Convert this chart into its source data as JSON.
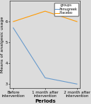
{
  "x_labels": [
    "Before\nintervention",
    "1 month after\nintervention",
    "2 month after\nintervention"
  ],
  "fenugreek_values": [
    5.7,
    3.3,
    3.0
  ],
  "placebo_values": [
    6.0,
    6.5,
    6.0
  ],
  "fenugreek_color": "#6699cc",
  "placebo_color": "#ff9900",
  "ylim": [
    2.8,
    7.0
  ],
  "yticks": [
    3,
    4,
    5,
    6
  ],
  "ylabel": "Means of analgesic usage",
  "xlabel": "Periods",
  "legend_title": "groups",
  "legend_labels": [
    "Fenugreek",
    "Placebo"
  ],
  "bg_color": "#dcdcdc",
  "axis_fontsize": 4.5,
  "tick_fontsize": 4.0,
  "legend_fontsize": 3.5,
  "xlabel_fontsize": 5.0,
  "linewidth": 0.8
}
